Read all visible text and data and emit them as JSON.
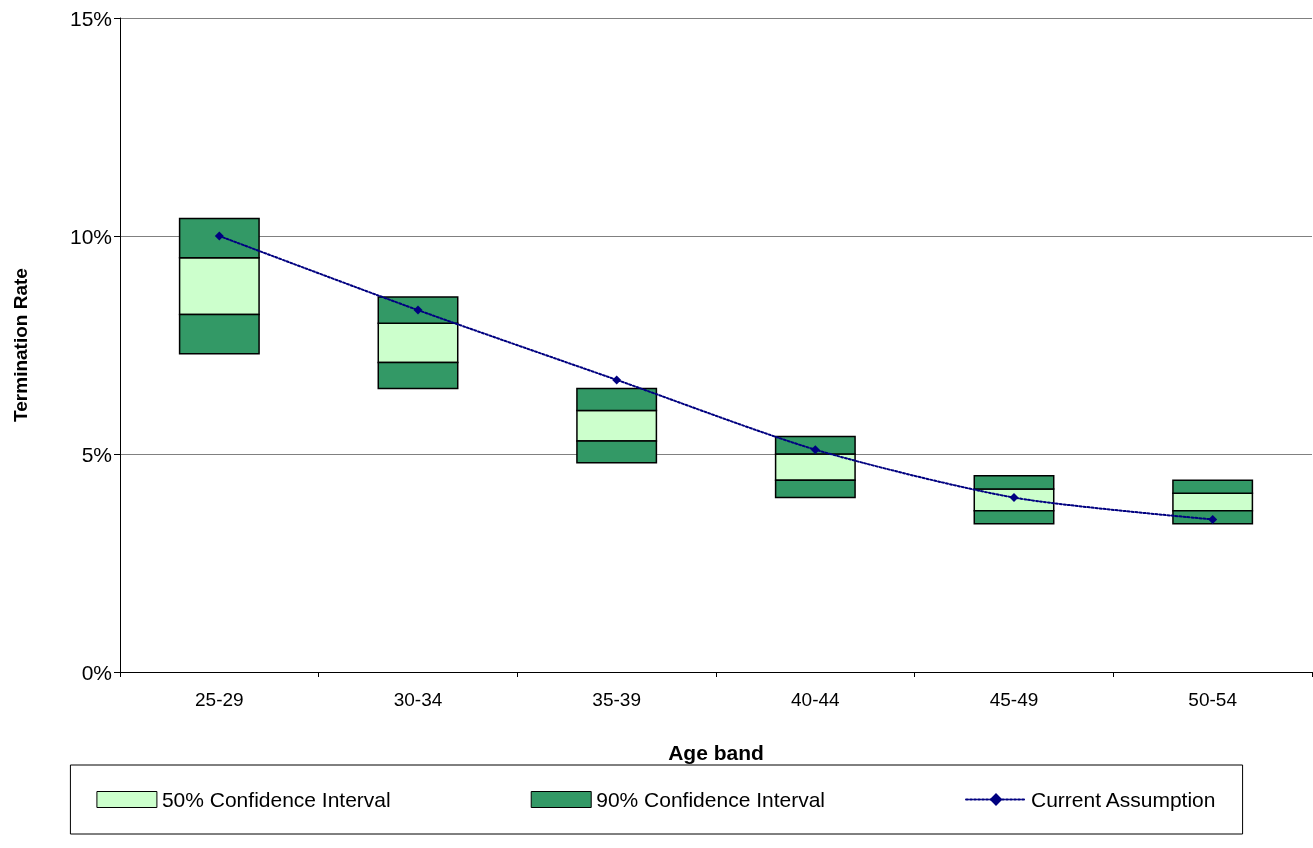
{
  "chart_data": {
    "type": "bar",
    "xlabel": "Age band",
    "ylabel": "Termination Rate",
    "categories": [
      "25-29",
      "30-34",
      "35-39",
      "40-44",
      "45-49",
      "50-54"
    ],
    "series": [
      {
        "name": "50% Confidence Interval",
        "color": "#ccffcc",
        "base": [
          8.2,
          7.1,
          5.3,
          4.4,
          3.7,
          3.7
        ],
        "values": [
          1.3,
          0.9,
          0.7,
          0.6,
          0.5,
          0.4
        ]
      },
      {
        "name": "90% Confidence Interval",
        "color": "#339966",
        "base": [
          7.3,
          6.5,
          4.8,
          4.0,
          3.4,
          3.4
        ],
        "values": [
          0.9,
          0.6,
          0.5,
          0.4,
          0.3,
          0.3
        ]
      },
      {
        "color": "#339966",
        "base": [
          9.5,
          8.0,
          6.0,
          5.0,
          4.2,
          4.1
        ],
        "values": [
          0.9,
          0.6,
          0.5,
          0.4,
          0.3,
          0.3
        ]
      },
      {
        "name": "Current Assumption",
        "type": "line",
        "color": "#000080",
        "values": [
          10.0,
          8.3,
          6.7,
          5.1,
          4.0,
          3.5
        ]
      }
    ],
    "marker": "diamond",
    "line_style": "dotted",
    "ylim": [
      0,
      15
    ],
    "yticks": [
      {
        "value": 0,
        "label": "0%"
      },
      {
        "value": 5,
        "label": "5%"
      },
      {
        "value": 10,
        "label": "10%"
      },
      {
        "value": 15,
        "label": "15%"
      }
    ],
    "grid": "y",
    "legend": "bottom"
  }
}
